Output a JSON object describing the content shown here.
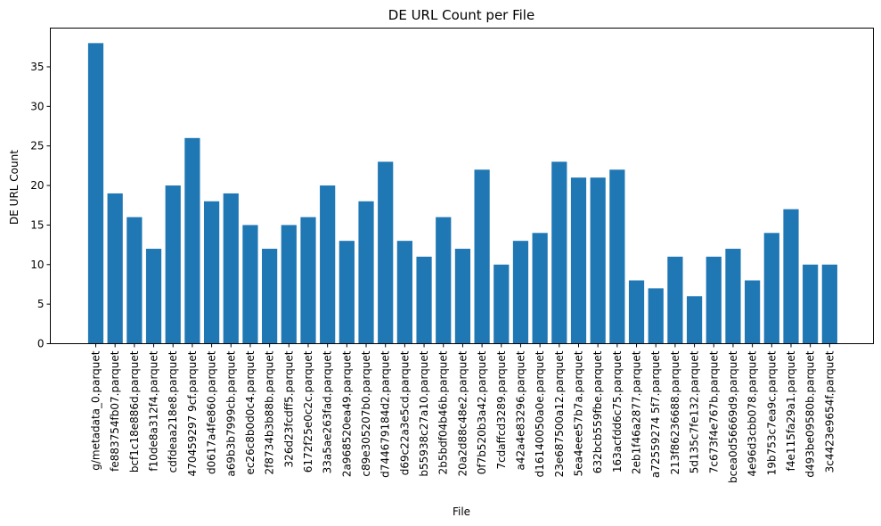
{
  "chart_data": {
    "type": "bar",
    "title": "DE URL Count per File",
    "xlabel": "File",
    "ylabel": "DE URL Count",
    "ylim": [
      0,
      39.9
    ],
    "yticks": [
      0,
      5,
      10,
      15,
      20,
      25,
      30,
      35
    ],
    "grid": false,
    "bar_color": "#1f77b4",
    "categories": [
      "g/metadata_0.parquet",
      "fe883754fb07.parquet",
      "bcf1c18e886d.parquet",
      "f10de8a312f4.parquet",
      "cdfdeaa218e8.parquet",
      "470459297 9cf.parquet",
      "d0617a4fe860.parquet",
      "a69b3b7999cb.parquet",
      "ec26c8b0d0c4.parquet",
      "2f8734b3b88b.parquet",
      "326d23fcdff5.parquet",
      "6172f25e0c2c.parquet",
      "33a5ae263fad.parquet",
      "2a968520ea49.parquet",
      "c89e305207b0.parquet",
      "d744679184d2.parquet",
      "d69c22a3e5cd.parquet",
      "b55938c27a10.parquet",
      "2b5bdf04b46b.parquet",
      "20a2d88c48e2.parquet",
      "0f7b520b3a42.parquet",
      "7cdaffcd3289.parquet",
      "a42a4e83296.parquet",
      "d16140050a0e.parquet",
      "23e687500a12.parquet",
      "5ea4eee57b7a.parquet",
      "632bcb559fbe.parquet",
      "163acfdd6c75.parquet",
      "2eb1f46a2877.parquet",
      "a72559274 5f7.parquet",
      "213f86236688.parquet",
      "5d135c7fe132.parquet",
      "7c673f4e767b.parquet",
      "bcea0d56669d9.parquet",
      "4e96d3cbb078.parquet",
      "19b753c7ea9c.parquet",
      "f4e115fa29a1.parquet",
      "d493be09580b.parquet",
      "3c4423e9654f.parquet"
    ],
    "values": [
      38,
      19,
      16,
      12,
      20,
      26,
      18,
      19,
      15,
      12,
      15,
      16,
      20,
      13,
      18,
      23,
      13,
      11,
      16,
      12,
      22,
      10,
      13,
      14,
      23,
      21,
      21,
      22,
      8,
      7,
      11,
      6,
      11,
      12,
      8,
      14,
      17,
      10,
      10
    ]
  }
}
